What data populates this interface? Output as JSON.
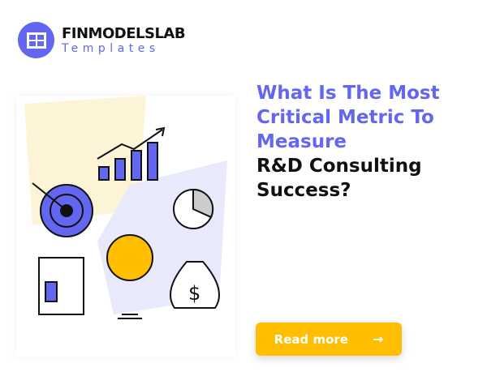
{
  "logo": {
    "brand": "FINMODELSLAB",
    "subtitle": "Templates",
    "icon": "grid-icon"
  },
  "headline": {
    "highlight": "What Is The Most Critical Metric To Measure",
    "rest": "R&D Consulting Success?"
  },
  "cta": {
    "label": "Read more",
    "icon": "arrow-right-icon"
  },
  "colors": {
    "accent": "#6366f1",
    "button": "#ffbe00",
    "text": "#111111"
  }
}
